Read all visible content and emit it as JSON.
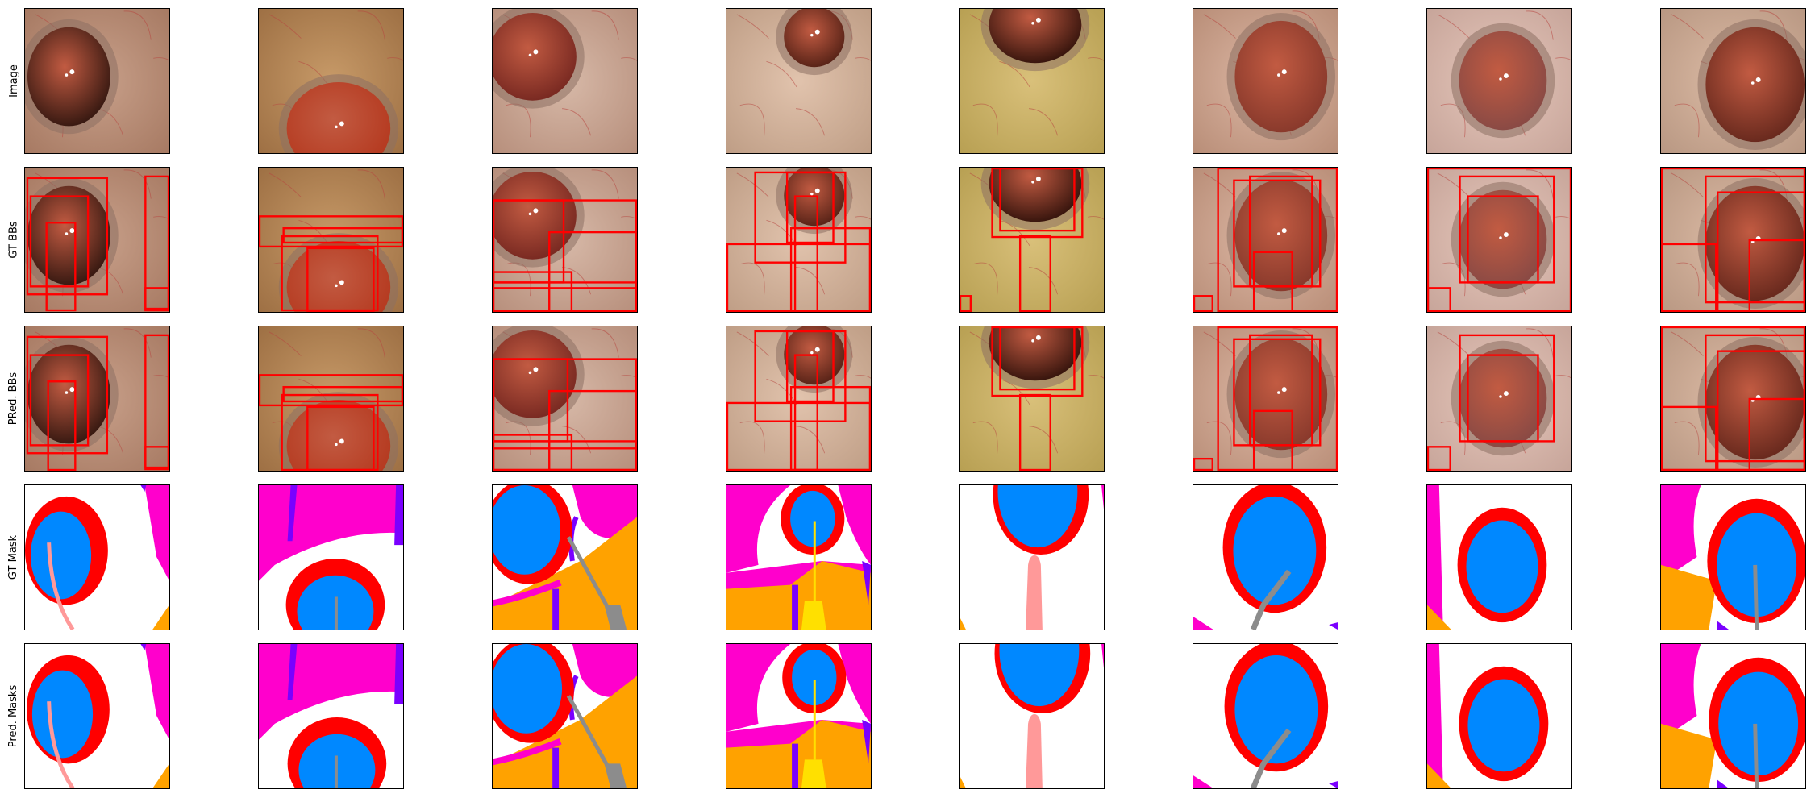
{
  "rows": [
    {
      "label": "Image"
    },
    {
      "label": "GT BBs"
    },
    {
      "label": "PRed. BBs"
    },
    {
      "label": "GT Mask"
    },
    {
      "label": "Pred. Masks"
    }
  ],
  "colors": {
    "bbox": "#ff0000",
    "pupil": "#0088ff",
    "iris": "#ff0000",
    "skin": "#ff00cc",
    "lens_instrument": "#ffa200",
    "cornea_edge": "#7a00ff",
    "instrument_gray": "#8c8c8c",
    "instrument_pink": "#ff9999",
    "instrument_yellow": "#ffe000"
  }
}
